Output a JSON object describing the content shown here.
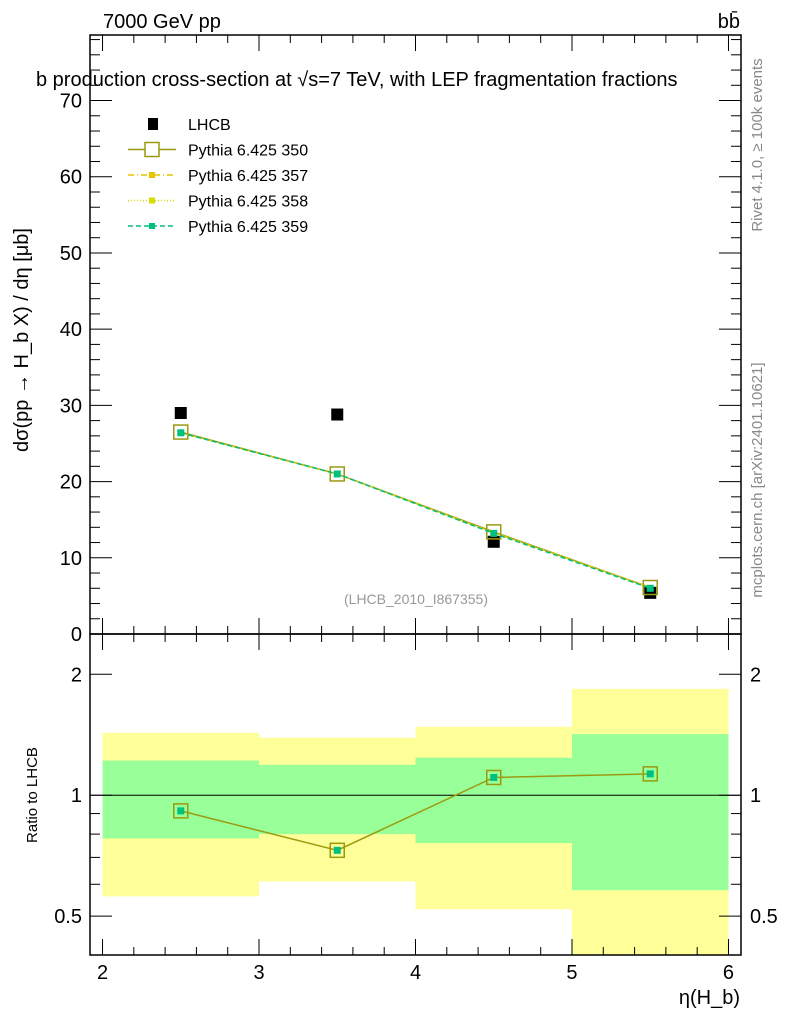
{
  "header": {
    "left": "7000 GeV pp",
    "right": "bb̄"
  },
  "side": {
    "top": "Rivet 4.1.0, ≥ 100k events",
    "bottom": "mcplots.cern.ch [arXiv:2401.10621]"
  },
  "chart_data": [
    {
      "type": "scatter",
      "title": "b production cross-section at √s=7 TeV, with LEP fragmentation fractions",
      "ylabel": "dσ(pp → H_b X) / dη [μb]",
      "xlim": [
        1.92,
        6.08
      ],
      "ylim": [
        0,
        78.6
      ],
      "yticks": [
        "0",
        "10",
        "20",
        "30",
        "40",
        "50",
        "60",
        "70"
      ],
      "watermark": "(LHCB_2010_I867355)",
      "x": [
        2.5,
        3.5,
        4.5,
        5.5
      ],
      "series": [
        {
          "name": "LHCB",
          "values": [
            29.0,
            28.8,
            12.1,
            5.4
          ],
          "color": "#000000",
          "style": "marker"
        },
        {
          "name": "Pythia 6.425 350",
          "values": [
            26.5,
            21.0,
            13.4,
            6.1
          ],
          "color": "#9a9a10",
          "style": "solid"
        },
        {
          "name": "Pythia 6.425 357",
          "values": [
            26.4,
            21.0,
            13.3,
            6.1
          ],
          "color": "#e8c400",
          "style": "dashdot"
        },
        {
          "name": "Pythia 6.425 358",
          "values": [
            26.4,
            21.0,
            13.3,
            6.1
          ],
          "color": "#d4dc00",
          "style": "dotted"
        },
        {
          "name": "Pythia 6.425 359",
          "values": [
            26.4,
            21.0,
            13.2,
            6.0
          ],
          "color": "#00c080",
          "style": "dashed"
        }
      ],
      "legend": "top-left"
    },
    {
      "type": "line",
      "ylabel": "Ratio to LHCB",
      "xlabel": "η(H_b)",
      "yscale": "log",
      "ylim": [
        0.4,
        2.52
      ],
      "xticks": [
        "2",
        "3",
        "4",
        "5",
        "6"
      ],
      "yticks": [
        "0.5",
        "1",
        "2"
      ],
      "bins": [
        [
          2,
          3
        ],
        [
          3,
          4
        ],
        [
          4,
          5
        ],
        [
          5,
          6
        ]
      ],
      "band_outer": [
        [
          0.56,
          1.43
        ],
        [
          0.61,
          1.39
        ],
        [
          0.52,
          1.48
        ],
        [
          0.38,
          1.84
        ]
      ],
      "band_inner": [
        [
          0.78,
          1.22
        ],
        [
          0.8,
          1.19
        ],
        [
          0.76,
          1.24
        ],
        [
          0.58,
          1.42
        ]
      ],
      "band_colors": {
        "outer": "#ffff99",
        "inner": "#99ff99"
      },
      "ratios": [
        0.914,
        0.729,
        1.107,
        1.13
      ]
    }
  ]
}
